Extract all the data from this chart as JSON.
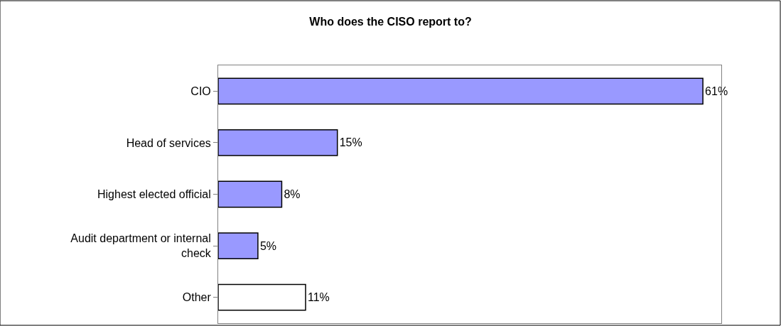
{
  "chart_data": {
    "type": "bar",
    "orientation": "horizontal",
    "tick_labels": "y",
    "title": "Who does the CISO report to?",
    "categories": [
      "CIO",
      "Head of services",
      "Highest elected official",
      "Audit department or internal check",
      "Other"
    ],
    "values": [
      61,
      15,
      8,
      5,
      11
    ],
    "colors": [
      "#9999ff",
      "#9999ff",
      "#9999ff",
      "#9999ff",
      "#ffffff"
    ],
    "value_labels": [
      "61%",
      "15%",
      "8%",
      "5%",
      "11%"
    ],
    "legend": false
  }
}
